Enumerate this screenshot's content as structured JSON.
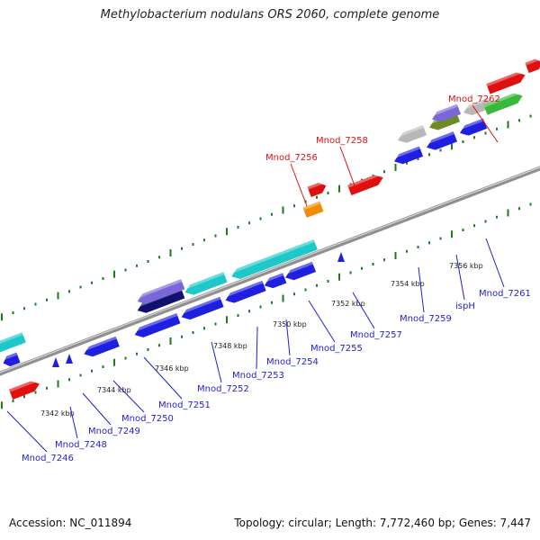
{
  "title": "Methylobacterium nodulans ORS 2060, complete genome",
  "footer": {
    "accession": "Accession: NC_011894",
    "summary": "Topology: circular; Length: 7,772,460 bp; Genes: 7,447"
  },
  "colors": {
    "backbone": "#8f8f8f",
    "tick": "#1e7a1e",
    "cds": "#1f1fe0",
    "rrna_red": "#e01010",
    "green": "#3ab83a",
    "orange": "#f08c00",
    "cyan": "#1fc8c8",
    "navy": "#101070",
    "lavender": "#7b68d8",
    "grey": "#b8b8b8",
    "olive": "#6a8c20"
  },
  "scale_labels": [
    "7342 kbp",
    "7344 kbp",
    "7346 kbp",
    "7348 kbp",
    "7350 kbp",
    "7352 kbp",
    "7354 kbp",
    "7356 kbp"
  ],
  "gene_labels": {
    "forward": [
      "Mnod_7256",
      "Mnod_7258",
      "Mnod_7262"
    ],
    "reverse": [
      "Mnod_7246",
      "Mnod_7248",
      "Mnod_7249",
      "Mnod_7250",
      "Mnod_7251",
      "Mnod_7252",
      "Mnod_7253",
      "Mnod_7254",
      "Mnod_7255",
      "Mnod_7257",
      "Mnod_7259",
      "ispH",
      "Mnod_7261"
    ]
  }
}
